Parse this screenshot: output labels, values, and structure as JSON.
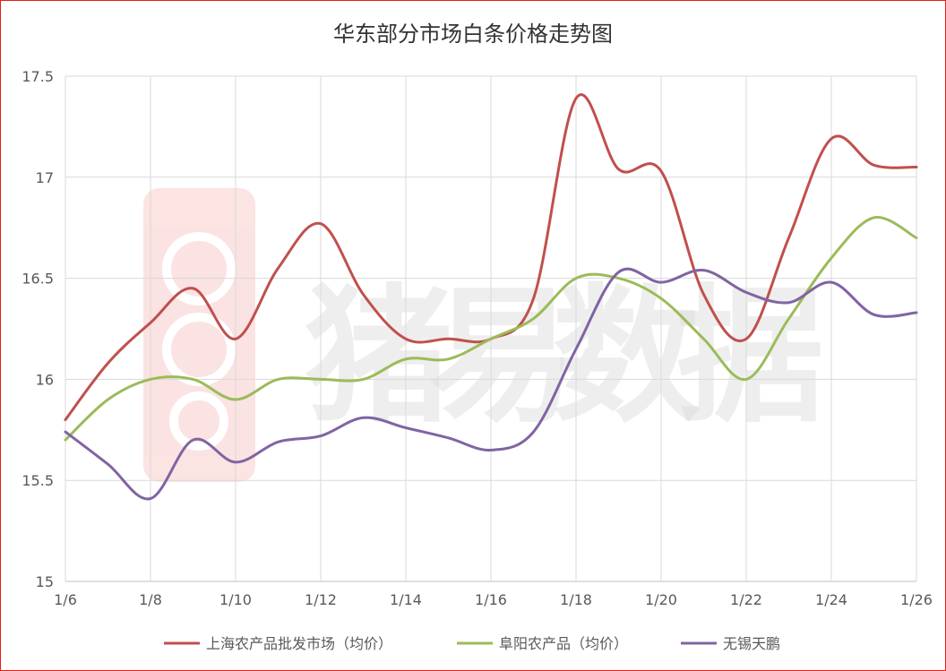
{
  "chart_data": {
    "type": "line",
    "title": "华东部分市场白条价格走势图",
    "xlabel": "",
    "ylabel": "",
    "x": [
      "1/6",
      "1/7",
      "1/8",
      "1/9",
      "1/10",
      "1/11",
      "1/12",
      "1/13",
      "1/14",
      "1/15",
      "1/16",
      "1/17",
      "1/18",
      "1/19",
      "1/20",
      "1/21",
      "1/22",
      "1/23",
      "1/24",
      "1/25",
      "1/26"
    ],
    "x_tick_labels": [
      "1/6",
      "1/8",
      "1/10",
      "1/12",
      "1/14",
      "1/16",
      "1/18",
      "1/20",
      "1/22",
      "1/24",
      "1/26"
    ],
    "ylim": [
      15,
      17.5
    ],
    "y_ticks": [
      15,
      15.5,
      16,
      16.5,
      17,
      17.5
    ],
    "y_tick_labels": [
      "15",
      "15.5",
      "16",
      "16.5",
      "17",
      "17.5"
    ],
    "grid": "vertical and horizontal",
    "legend_position": "bottom",
    "smooth": true,
    "series": [
      {
        "name": "上海农产品批发市场（均价）",
        "color": "#c0504d",
        "values": [
          15.8,
          16.08,
          16.28,
          16.45,
          16.2,
          16.55,
          16.77,
          16.42,
          16.2,
          16.2,
          16.2,
          16.4,
          17.39,
          17.04,
          17.03,
          16.42,
          16.2,
          16.7,
          17.19,
          17.06,
          17.05
        ]
      },
      {
        "name": "阜阳农产品（均价）",
        "color": "#9bbb59",
        "values": [
          15.7,
          15.9,
          16.0,
          16.0,
          15.9,
          16.0,
          16.0,
          16.0,
          16.1,
          16.1,
          16.2,
          16.3,
          16.5,
          16.5,
          16.4,
          16.2,
          16.0,
          16.3,
          16.6,
          16.8,
          16.7
        ]
      },
      {
        "name": "无锡天鹏",
        "color": "#8064a2",
        "values": [
          15.74,
          15.58,
          15.41,
          15.7,
          15.59,
          15.69,
          15.72,
          15.81,
          15.76,
          15.71,
          15.65,
          15.74,
          16.15,
          16.53,
          16.48,
          16.54,
          16.43,
          16.38,
          16.48,
          16.32,
          16.33
        ]
      }
    ],
    "watermark": "猪易数据"
  }
}
